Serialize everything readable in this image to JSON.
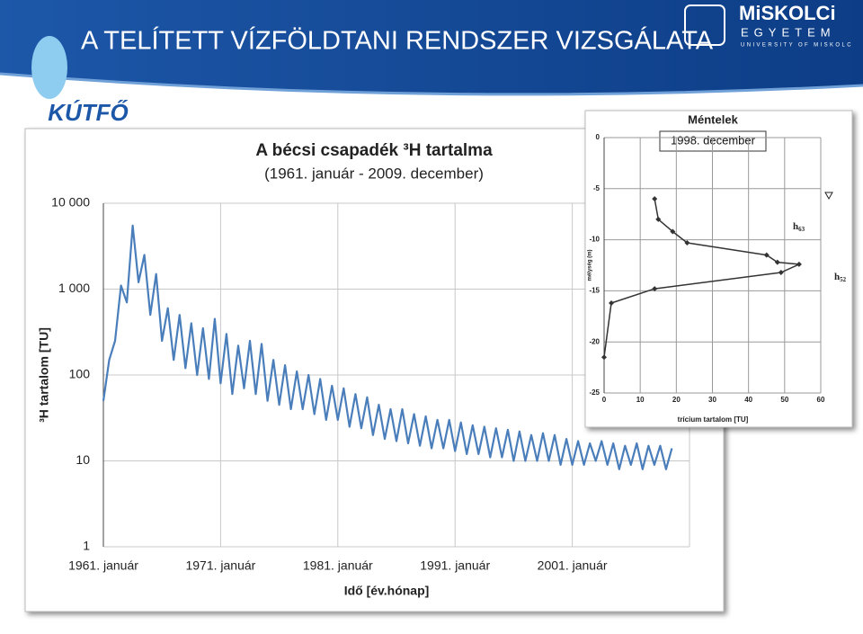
{
  "header": {
    "title": "A TELÍTETT VÍZFÖLDTANI RENDSZER VIZSGÁLATA",
    "logo": "KÚTFŐ",
    "university": "MiSKOLCi",
    "university_line2": "EGYETEM",
    "university_en": "UNIVERSITY OF MISKOLC"
  },
  "chart_data": [
    {
      "type": "line",
      "title": "A bécsi csapadék ³H tartalma",
      "subtitle": "(1961. január - 2009. december)",
      "ylabel": "³H tartalom [TU]",
      "xlabel": "Idő [év.hónap]",
      "log_y": true,
      "grid": true,
      "xlim": [
        1961,
        2011
      ],
      "ylim": [
        1,
        10000
      ],
      "xticks": [
        {
          "value": 1961,
          "label": "1961. január"
        },
        {
          "value": 1971,
          "label": "1971. január"
        },
        {
          "value": 1981,
          "label": "1981. január"
        },
        {
          "value": 1991,
          "label": "1991. január"
        },
        {
          "value": 2001,
          "label": "2001. január"
        }
      ],
      "yticks": [
        1,
        10,
        100,
        {
          "value": 1000,
          "label": "1 000"
        },
        {
          "value": 10000,
          "label": "10 000"
        }
      ],
      "series": [
        {
          "color": "#4a7ebb",
          "x": [
            1961,
            1961.5,
            1962,
            1962.5,
            1963,
            1963.5,
            1964,
            1964.5,
            1965,
            1965.5,
            1966,
            1966.5,
            1967,
            1967.5,
            1968,
            1968.5,
            1969,
            1969.5,
            1970,
            1970.5,
            1971,
            1971.5,
            1972,
            1972.5,
            1973,
            1973.5,
            1974,
            1974.5,
            1975,
            1975.5,
            1976,
            1976.5,
            1977,
            1977.5,
            1978,
            1978.5,
            1979,
            1979.5,
            1980,
            1980.5,
            1981,
            1981.5,
            1982,
            1982.5,
            1983,
            1983.5,
            1984,
            1984.5,
            1985,
            1985.5,
            1986,
            1986.5,
            1987,
            1987.5,
            1988,
            1988.5,
            1989,
            1989.5,
            1990,
            1990.5,
            1991,
            1991.5,
            1992,
            1992.5,
            1993,
            1993.5,
            1994,
            1994.5,
            1995,
            1995.5,
            1996,
            1996.5,
            1997,
            1997.5,
            1998,
            1998.5,
            1999,
            1999.5,
            2000,
            2000.5,
            2001,
            2001.5,
            2002,
            2002.5,
            2003,
            2003.5,
            2004,
            2004.5,
            2005,
            2005.5,
            2006,
            2006.5,
            2007,
            2007.5,
            2008,
            2008.5,
            2009,
            2009.5
          ],
          "values": [
            50,
            150,
            250,
            1100,
            700,
            5500,
            1200,
            2500,
            500,
            1500,
            250,
            600,
            150,
            500,
            120,
            400,
            100,
            350,
            90,
            450,
            80,
            300,
            60,
            220,
            70,
            250,
            60,
            230,
            50,
            150,
            45,
            130,
            40,
            110,
            40,
            100,
            35,
            90,
            30,
            75,
            30,
            70,
            25,
            60,
            24,
            55,
            20,
            45,
            18,
            40,
            17,
            40,
            16,
            35,
            15,
            33,
            14,
            30,
            14,
            30,
            13,
            28,
            12,
            26,
            12,
            25,
            11,
            24,
            11,
            23,
            10,
            22,
            10,
            20,
            10,
            21,
            10,
            20,
            9,
            18,
            9,
            17,
            9,
            16,
            10,
            17,
            9,
            16,
            8,
            15,
            9,
            16,
            8,
            15,
            9,
            15,
            8,
            14
          ]
        }
      ]
    },
    {
      "type": "line",
      "title": "Méntelek",
      "annotation": "1998. december",
      "ylabel": "mélység (m)",
      "xlabel": "trícium tartalom [TU]",
      "grid": true,
      "xlim": [
        0,
        60
      ],
      "ylim": [
        -25,
        0
      ],
      "xticks": [
        0,
        10,
        20,
        30,
        40,
        50,
        60
      ],
      "yticks": [
        0,
        -5,
        -10,
        -15,
        -20,
        -25
      ],
      "marks": [
        {
          "text": "h",
          "sub": "63"
        },
        {
          "text": "h",
          "sub": "52"
        }
      ],
      "series": [
        {
          "color": "#333333",
          "x": [
            14,
            15,
            19,
            23,
            45,
            48,
            54,
            49,
            14,
            2,
            0
          ],
          "values": [
            -6,
            -8,
            -9.2,
            -10.3,
            -11.5,
            -12.2,
            -12.4,
            -13.2,
            -14.8,
            -16.2,
            -21.5
          ]
        }
      ]
    }
  ]
}
